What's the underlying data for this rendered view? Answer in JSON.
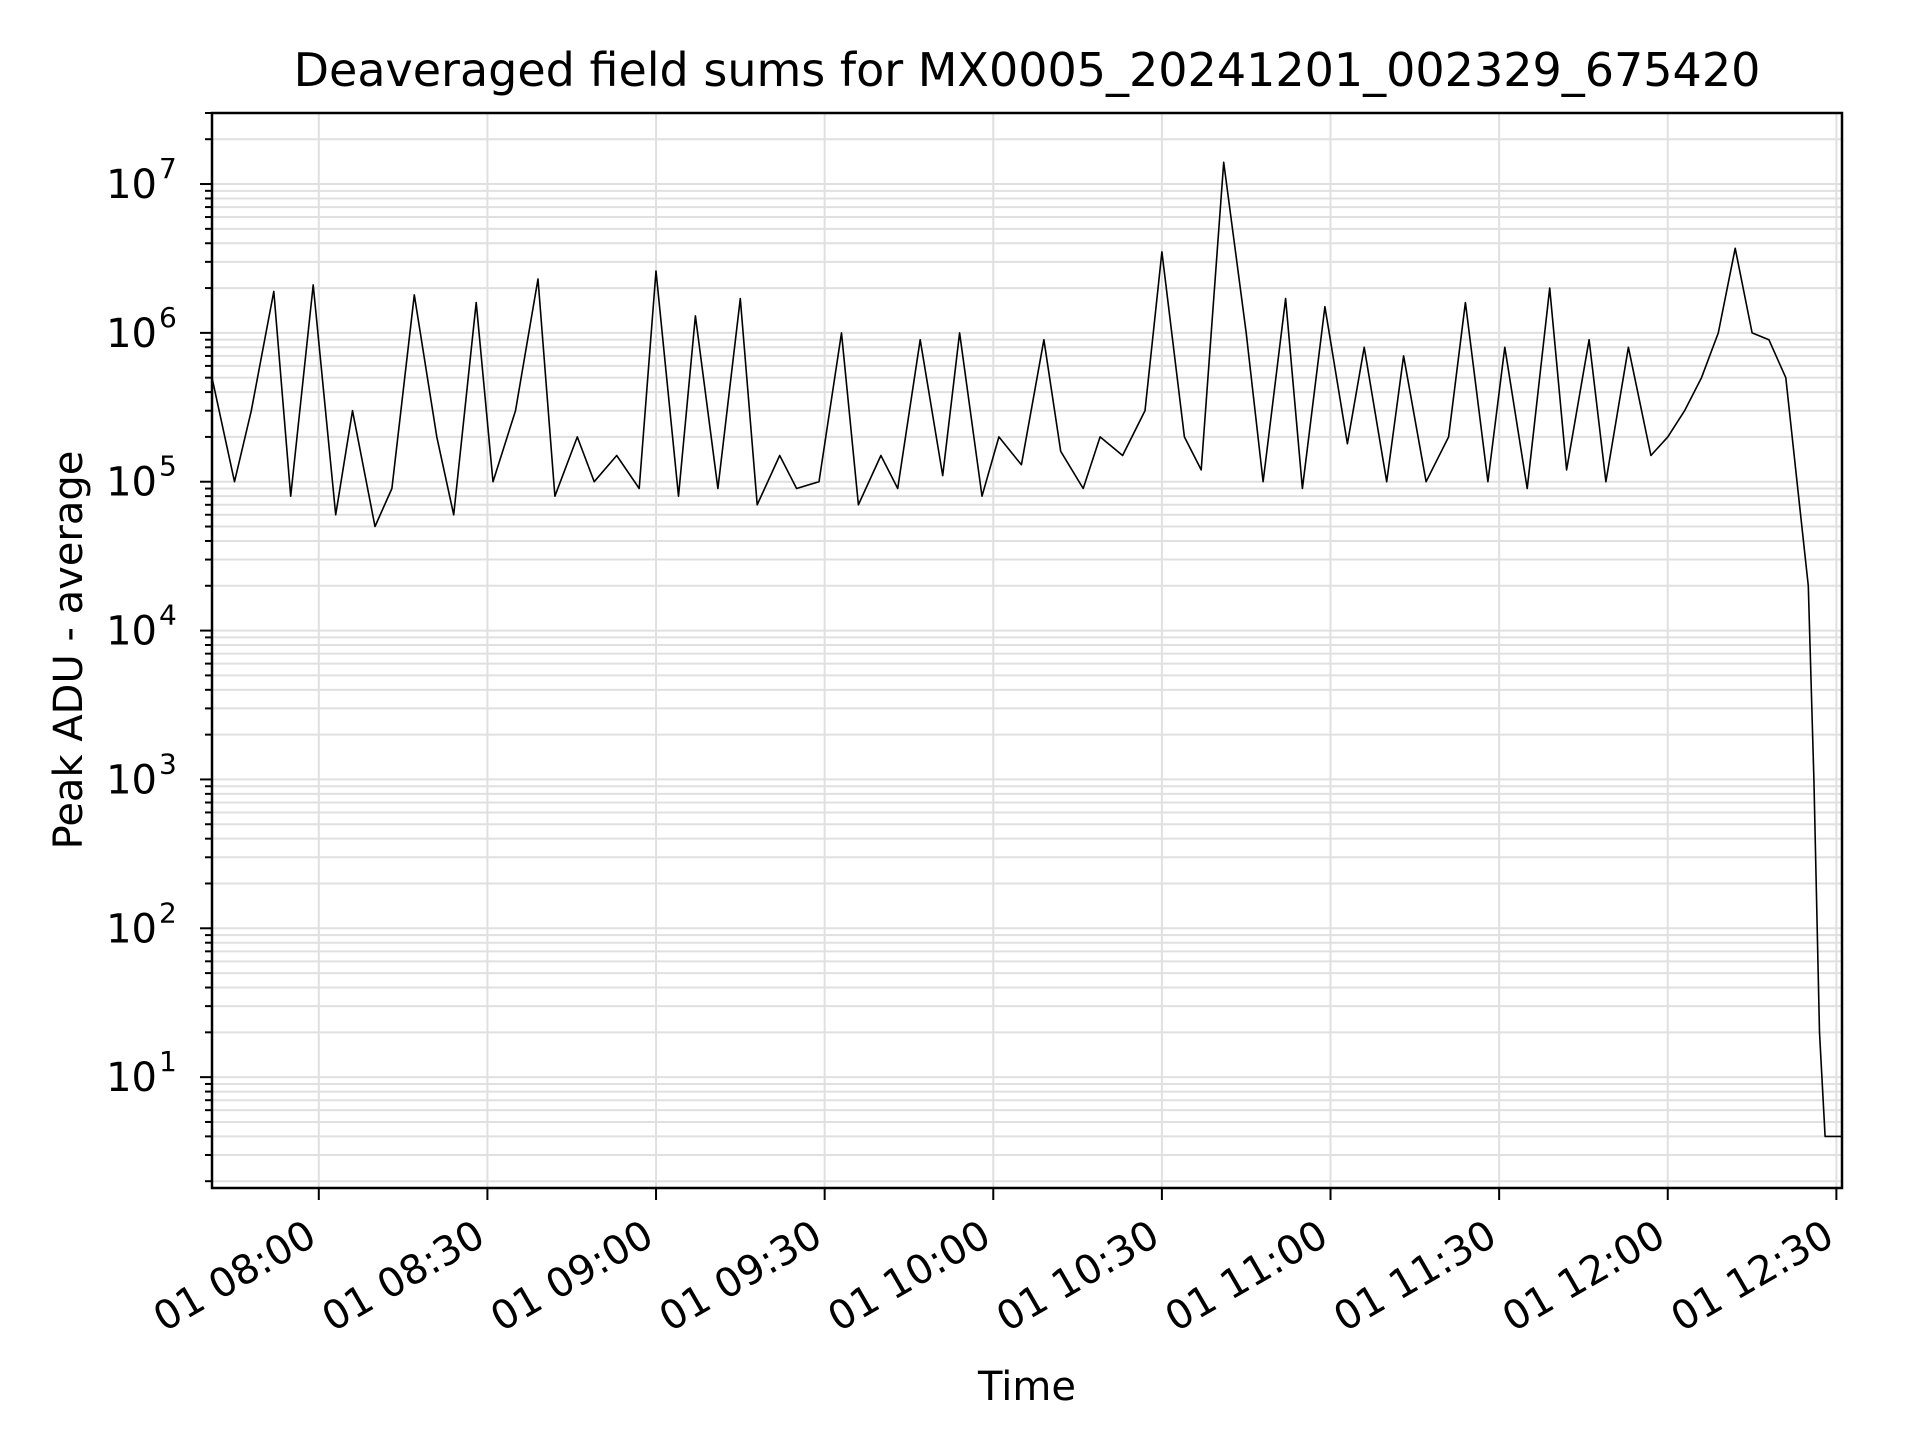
{
  "chart_data": {
    "type": "line",
    "title": "Deaveraged field sums for MX0005_20241201_002329_675420",
    "xlabel": "Time",
    "ylabel": "Peak ADU - average",
    "y_scale": "log",
    "ylim": [
      1.8,
      30000000
    ],
    "xlim": [
      "01 07:41",
      "01 12:31"
    ],
    "x_ticks": [
      "01 08:00",
      "01 08:30",
      "01 09:00",
      "01 09:30",
      "01 10:00",
      "01 10:30",
      "01 11:00",
      "01 11:30",
      "01 12:00",
      "01 12:30"
    ],
    "y_ticks": [
      {
        "base": "10",
        "exp": "1",
        "value": 10
      },
      {
        "base": "10",
        "exp": "2",
        "value": 100
      },
      {
        "base": "10",
        "exp": "3",
        "value": 1000
      },
      {
        "base": "10",
        "exp": "4",
        "value": 10000
      },
      {
        "base": "10",
        "exp": "5",
        "value": 100000
      },
      {
        "base": "10",
        "exp": "6",
        "value": 1000000
      },
      {
        "base": "10",
        "exp": "7",
        "value": 10000000
      }
    ],
    "grid": true,
    "line_color": "#000000",
    "grid_color": "#e0e0e0",
    "series": [
      {
        "x": [
          "01 07:41",
          "01 07:45",
          "01 07:48",
          "01 07:52",
          "01 07:55",
          "01 07:59",
          "01 08:03",
          "01 08:06",
          "01 08:10",
          "01 08:13",
          "01 08:17",
          "01 08:21",
          "01 08:24",
          "01 08:28",
          "01 08:31",
          "01 08:35",
          "01 08:39",
          "01 08:42",
          "01 08:46",
          "01 08:49",
          "01 08:53",
          "01 08:57",
          "01 09:00",
          "01 09:04",
          "01 09:07",
          "01 09:11",
          "01 09:15",
          "01 09:18",
          "01 09:22",
          "01 09:25",
          "01 09:29",
          "01 09:33",
          "01 09:36",
          "01 09:40",
          "01 09:43",
          "01 09:47",
          "01 09:51",
          "01 09:54",
          "01 09:58",
          "01 10:01",
          "01 10:05",
          "01 10:09",
          "01 10:12",
          "01 10:16",
          "01 10:19",
          "01 10:23",
          "01 10:27",
          "01 10:30",
          "01 10:34",
          "01 10:37",
          "01 10:41",
          "01 10:45",
          "01 10:48",
          "01 10:52",
          "01 10:55",
          "01 10:59",
          "01 11:03",
          "01 11:06",
          "01 11:10",
          "01 11:13",
          "01 11:17",
          "01 11:21",
          "01 11:24",
          "01 11:28",
          "01 11:31",
          "01 11:35",
          "01 11:39",
          "01 11:42",
          "01 11:46",
          "01 11:49",
          "01 11:53",
          "01 11:57",
          "01 12:00",
          "01 12:03",
          "01 12:06",
          "01 12:09",
          "01 12:12",
          "01 12:15",
          "01 12:18",
          "01 12:21",
          "01 12:23",
          "01 12:25",
          "01 12:26",
          "01 12:27",
          "01 12:28",
          "01 12:29",
          "01 12:29",
          "01 12:31"
        ],
        "y": [
          500000,
          100000,
          300000,
          1900000,
          80000,
          2100000,
          60000,
          300000,
          50000,
          90000,
          1800000,
          200000,
          60000,
          1600000,
          100000,
          300000,
          2300000,
          80000,
          200000,
          100000,
          150000,
          90000,
          2600000,
          80000,
          1300000,
          90000,
          1700000,
          70000,
          150000,
          90000,
          100000,
          1000000,
          70000,
          150000,
          90000,
          900000,
          110000,
          1000000,
          80000,
          200000,
          130000,
          900000,
          160000,
          90000,
          200000,
          150000,
          300000,
          3500000,
          200000,
          120000,
          14000000,
          1000000,
          100000,
          1700000,
          90000,
          1500000,
          180000,
          800000,
          100000,
          700000,
          100000,
          200000,
          1600000,
          100000,
          800000,
          90000,
          2000000,
          120000,
          900000,
          100000,
          800000,
          150000,
          200000,
          300000,
          500000,
          1000000,
          3700000,
          1000000,
          900000,
          500000,
          100000,
          20000,
          1000,
          20,
          4,
          4,
          4,
          4
        ]
      }
    ]
  }
}
